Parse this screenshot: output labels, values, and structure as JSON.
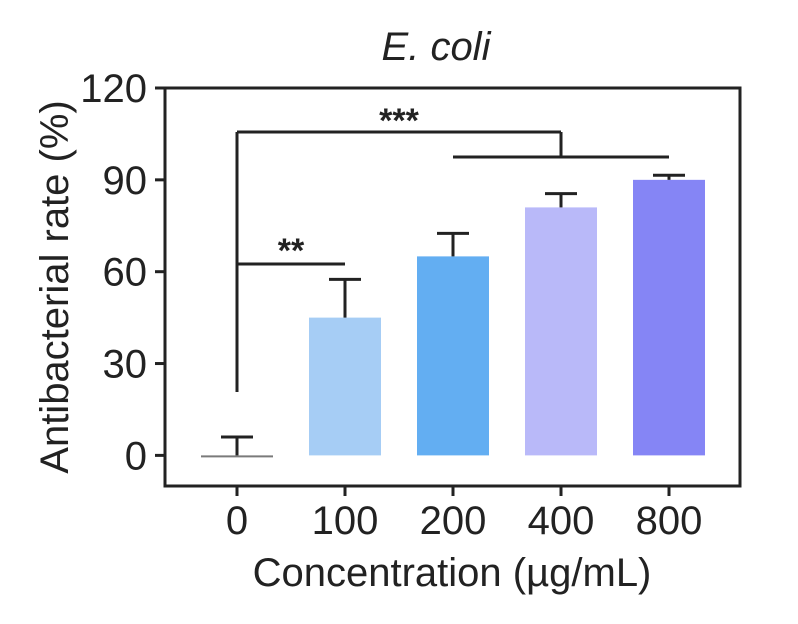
{
  "chart_data": {
    "type": "bar",
    "title": "E. coli",
    "xlabel": "Concentration (µg/mL)",
    "ylabel": "Antibacterial rate (%)",
    "categories": [
      "0",
      "100",
      "200",
      "400",
      "800"
    ],
    "values": [
      0,
      45,
      65,
      81,
      90
    ],
    "errors": [
      6,
      12.5,
      7.5,
      4.5,
      1.5
    ],
    "colors": [
      "#7a7a7a",
      "#a6cdf5",
      "#63aef2",
      "#b9b9f9",
      "#8585f5"
    ],
    "yticks": [
      "0",
      "30",
      "60",
      "90",
      "120"
    ],
    "ylim": [
      -10,
      120
    ],
    "grid": false,
    "significance": [
      {
        "label": "**",
        "from": "0",
        "to": "100"
      },
      {
        "label": "***",
        "from": "0",
        "to": [
          "200",
          "400",
          "800"
        ]
      }
    ]
  }
}
